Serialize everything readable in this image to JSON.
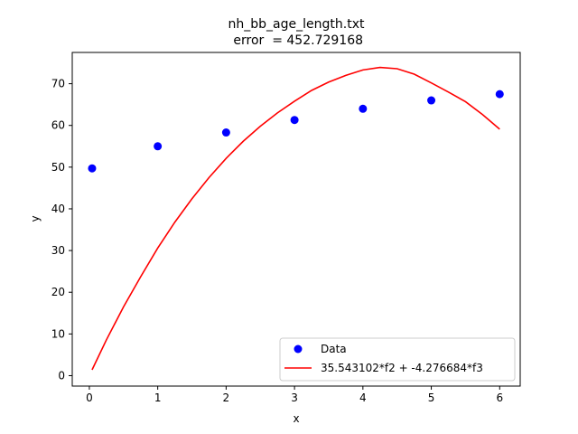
{
  "chart_data": {
    "type": "scatter",
    "title": "nh_bb_age_length.txt",
    "subtitle": " error  = 452.729168",
    "xlabel": "x",
    "ylabel": "y",
    "xlim": [
      -0.25,
      6.3
    ],
    "ylim": [
      -2.5,
      77.5
    ],
    "xticks": [
      0,
      1,
      2,
      3,
      4,
      5,
      6
    ],
    "yticks": [
      0,
      10,
      20,
      30,
      40,
      50,
      60,
      70
    ],
    "grid": false,
    "legend_position": "lower-right",
    "series": [
      {
        "name": "Data",
        "kind": "scatter",
        "color": "#0000ff",
        "x": [
          0.04,
          1,
          2,
          3,
          4,
          5,
          6
        ],
        "y": [
          49.7,
          55.0,
          58.3,
          61.3,
          64.0,
          66.0,
          67.5
        ]
      },
      {
        "name": "35.543102*f2 + -4.276684*f3",
        "kind": "line",
        "color": "#ff0000",
        "x": [
          0.04,
          0.25,
          0.5,
          0.75,
          1,
          1.25,
          1.5,
          1.75,
          2,
          2.25,
          2.5,
          2.75,
          3,
          3.25,
          3.5,
          3.75,
          4,
          4.25,
          4.5,
          4.75,
          5,
          5.25,
          5.5,
          5.75,
          6
        ],
        "y": [
          1.4,
          8.6,
          16.5,
          23.7,
          30.6,
          36.8,
          42.4,
          47.5,
          52.1,
          56.2,
          59.8,
          63.0,
          65.8,
          68.4,
          70.4,
          72.0,
          73.3,
          73.9,
          73.6,
          72.3,
          70.2,
          68.0,
          65.7,
          62.6,
          59.1
        ]
      }
    ]
  }
}
